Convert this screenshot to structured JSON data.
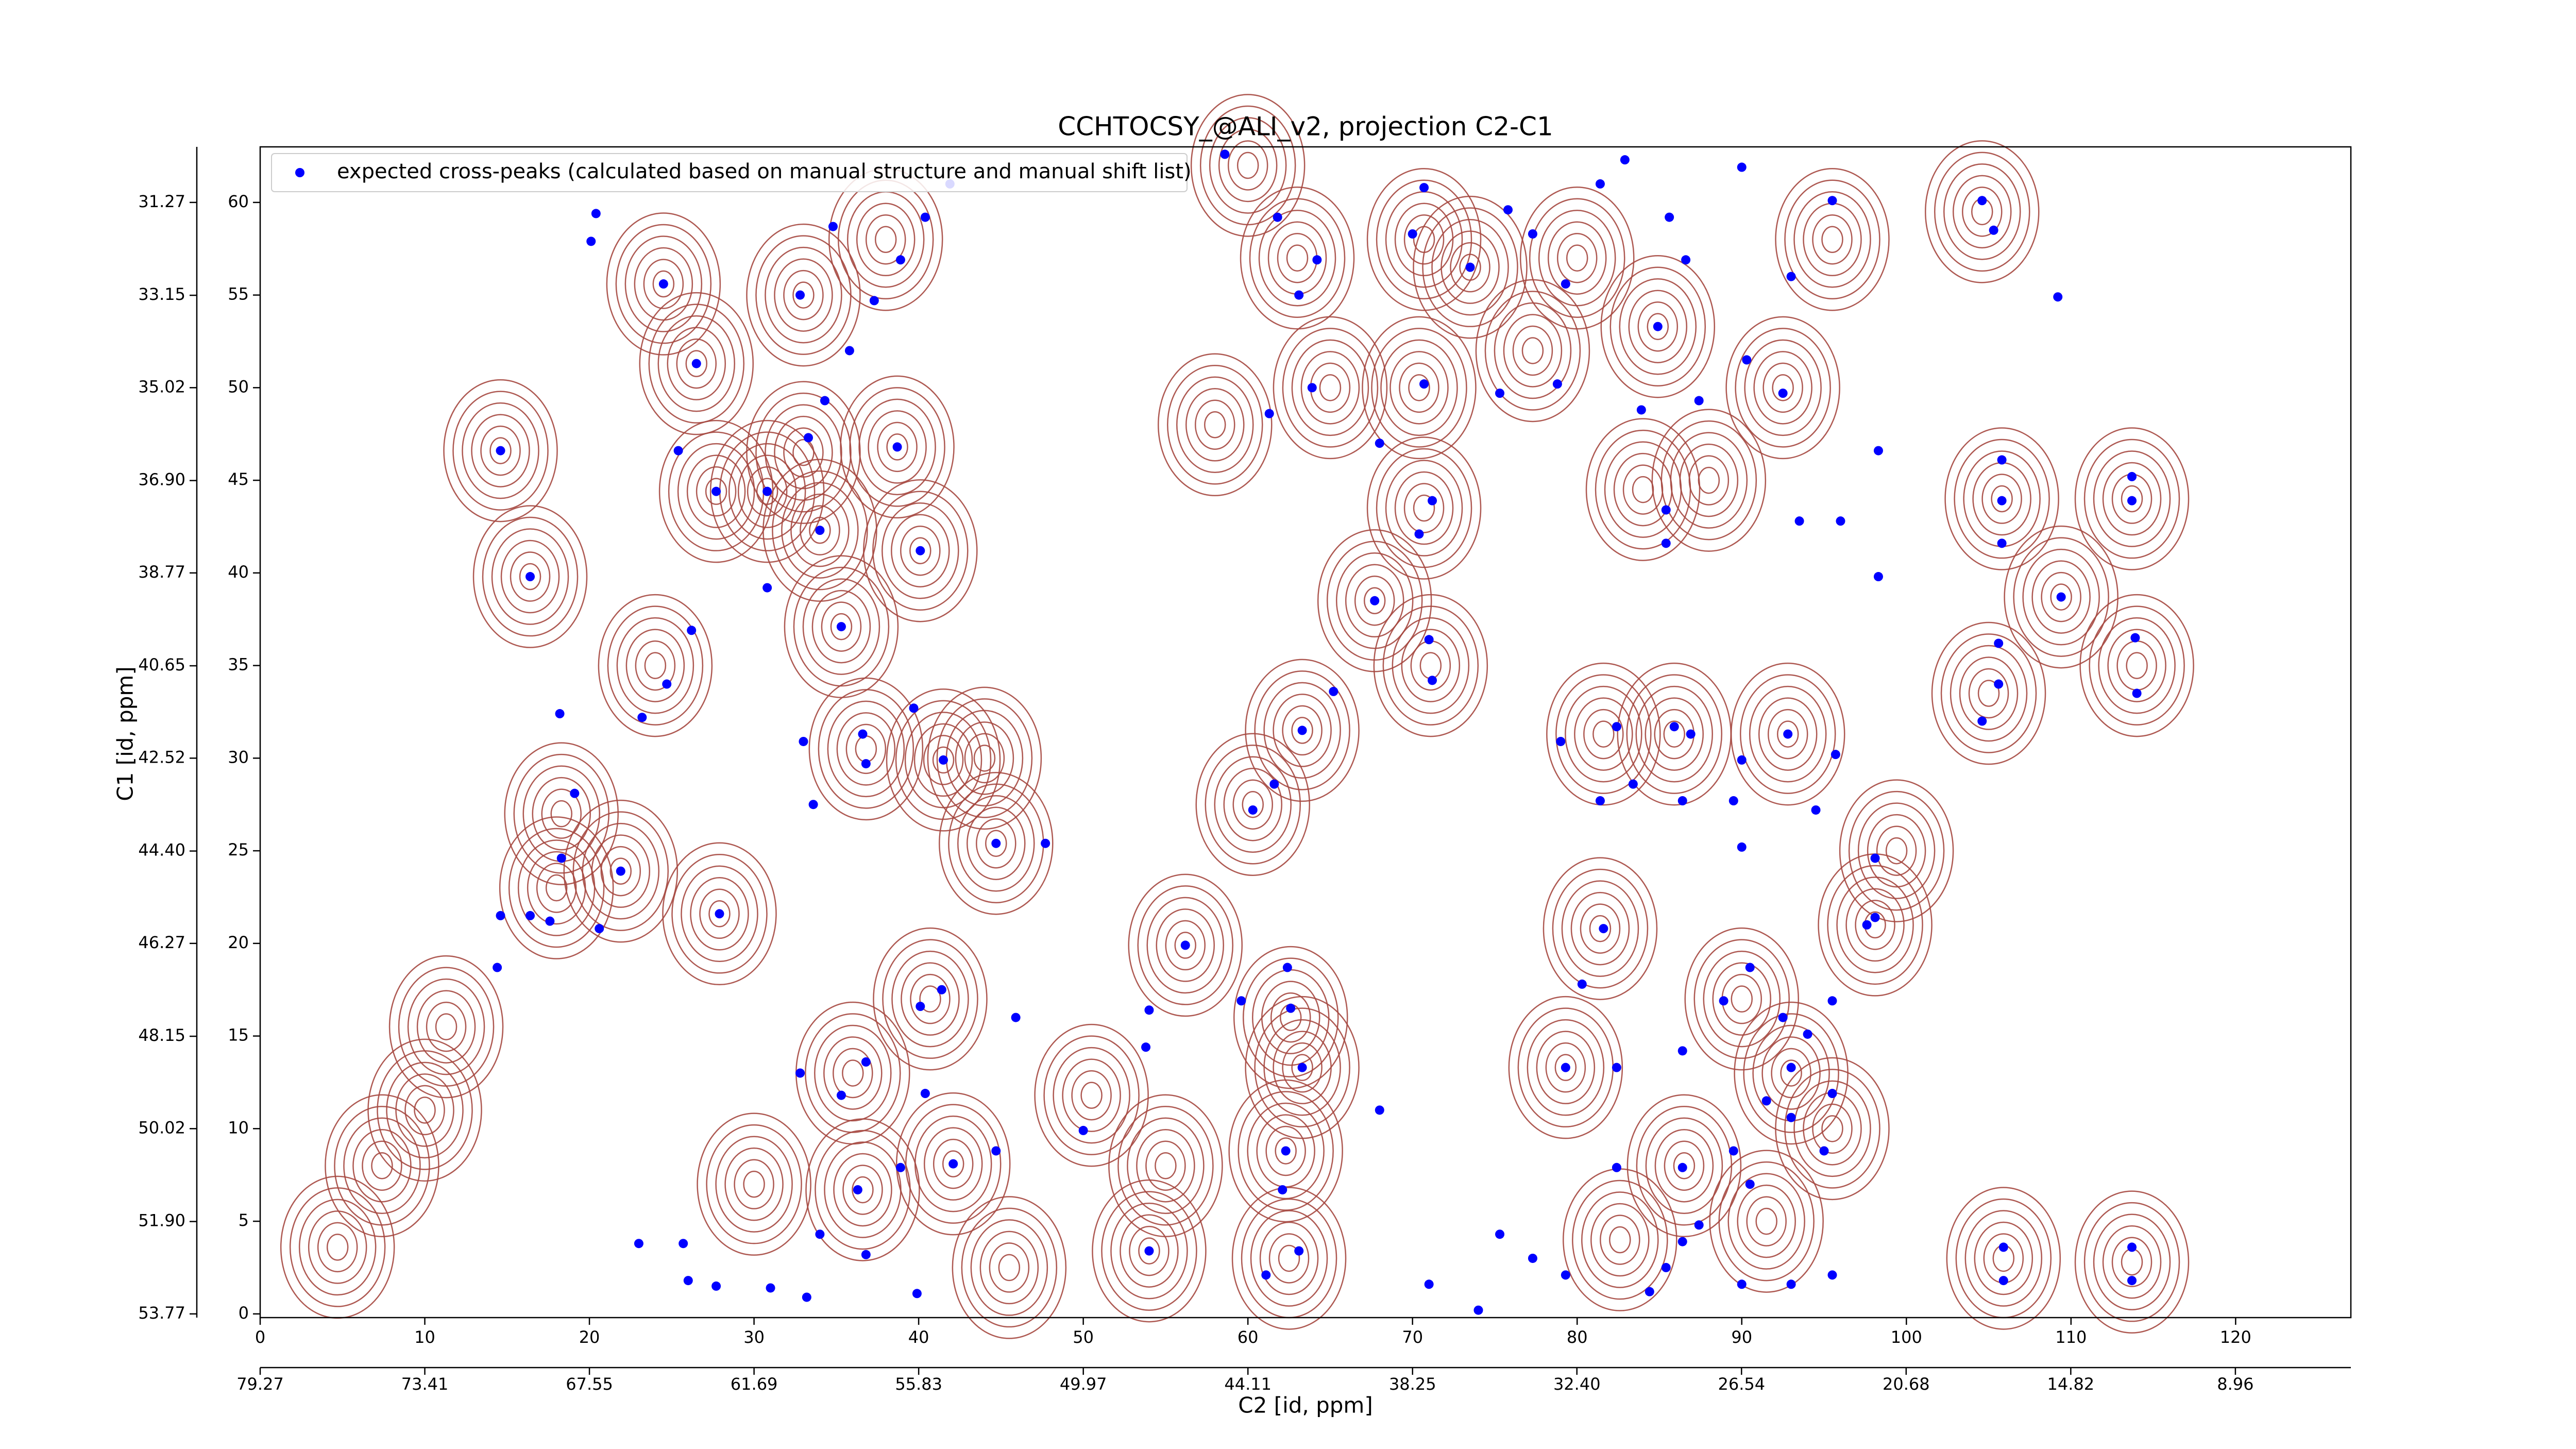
{
  "chart_data": {
    "type": "scatter",
    "title": "CCHTOCSY_@ALI_v2, projection C2-C1",
    "x_label": "C2 [id, ppm]",
    "y_label": "C1 [id, ppm]",
    "xlim": [
      0,
      127
    ],
    "xticks": [
      0,
      10,
      20,
      30,
      40,
      50,
      60,
      70,
      80,
      90,
      100,
      110,
      120
    ],
    "x2lim": [
      79.27,
      4.85
    ],
    "x2ticks": [
      79.27,
      73.41,
      67.55,
      61.69,
      55.83,
      49.97,
      44.11,
      38.25,
      {
        "value": 32.4,
        "label": "32.40"
      },
      26.54,
      20.68,
      14.82,
      8.96
    ],
    "ylim": [
      -0.2,
      63
    ],
    "yticks": [
      0,
      5,
      10,
      15,
      20,
      25,
      30,
      35,
      40,
      45,
      50,
      55,
      60
    ],
    "y2lim": [
      53.845,
      30.145
    ],
    "y2ticks": [
      31.27,
      33.15,
      35.02,
      {
        "value": 36.9,
        "label": "36.90"
      },
      38.77,
      40.65,
      42.52,
      {
        "value": 44.4,
        "label": "44.40"
      },
      46.27,
      48.15,
      50.02,
      {
        "value": 51.9,
        "label": "51.90"
      },
      53.77
    ],
    "legend": "upper left",
    "contours": {
      "color": "#a5473f",
      "x": [
        26.5,
        24.5,
        14.6,
        16.4,
        27.7,
        30.8,
        35.3,
        34.0,
        40.1,
        38.7,
        18.3,
        21.9,
        27.9,
        11.3,
        10,
        7.4,
        4.7,
        36.8,
        41.5,
        44.7,
        40.7,
        36,
        50.5,
        42.1,
        36.6,
        45.5,
        56.2,
        60.3,
        63.3,
        62.6,
        63.3,
        62.3,
        54,
        62.5,
        70.7,
        73.5,
        70.4,
        70.7,
        67.7,
        71.1,
        81.6,
        85.9,
        92.8,
        81.4,
        79.3,
        82.6,
        90,
        93,
        95.5,
        98.1,
        99.4,
        105.8,
        109.4,
        105,
        113.7,
        114,
        105.9,
        113.7,
        84.9,
        92.5,
        80,
        95.5,
        104.6,
        77.3,
        88,
        84,
        86.5,
        91.5,
        30,
        33,
        24,
        38,
        60,
        63,
        18,
        58,
        55,
        65,
        44,
        33
      ],
      "y": [
        51.3,
        55.6,
        46.6,
        39.8,
        44.4,
        44.4,
        37.1,
        42.3,
        41.2,
        46.8,
        27,
        23.9,
        21.6,
        15.5,
        11,
        8,
        3.6,
        30.5,
        29.9,
        25.4,
        17,
        13,
        11.8,
        8.1,
        6.7,
        2.5,
        19.9,
        27.5,
        31.5,
        16,
        13.3,
        8.8,
        3.4,
        3,
        58,
        56.5,
        50,
        43.5,
        38.5,
        35,
        31.3,
        31.3,
        31.3,
        20.8,
        13.3,
        4,
        17,
        13,
        10,
        21,
        25,
        44,
        38.7,
        33.5,
        44,
        35,
        3,
        2.8,
        53.3,
        50,
        57,
        58,
        59.5,
        52,
        45,
        44.5,
        8,
        5,
        7,
        46.5,
        35,
        58,
        62,
        57,
        23,
        48,
        8,
        50,
        30,
        55
      ]
    },
    "series": [
      {
        "name": "expected cross-peaks (calculated based on manual structure and manual shift list)",
        "color": "#0000ff",
        "x": [
          20.4,
          20.1,
          24.5,
          26.5,
          25.4,
          27.7,
          30.8,
          16.4,
          14.6,
          26.2,
          24.7,
          23.2,
          18.2,
          19.1,
          18.3,
          21.9,
          27.9,
          14.6,
          16.4,
          17.6,
          20.6,
          14.4,
          30.8,
          34.0,
          35.3,
          38.7,
          40.1,
          36.6,
          39.7,
          36.8,
          41.5,
          33.0,
          33.6,
          34.8,
          32.8,
          33.3,
          34.3,
          35.8,
          37.3,
          38.9,
          40.4,
          41.9,
          44.7,
          47.7,
          41.4,
          40.1,
          45.9,
          36.8,
          35.3,
          32.8,
          40.4,
          42.1,
          38.9,
          36.3,
          44.7,
          34.0,
          36.8,
          39.9,
          31.0,
          33.2,
          23.0,
          26.0,
          27.7,
          25.7,
          58.6,
          61.8,
          64.2,
          63.1,
          61.3,
          63.9,
          65.2,
          63.3,
          61.6,
          60.3,
          56.2,
          62.4,
          62.6,
          63.3,
          54.0,
          53.8,
          59.6,
          68.0,
          62.3,
          62.1,
          63.1,
          61.1,
          54.0,
          50.0,
          70.7,
          70.0,
          73.5,
          75.8,
          77.3,
          79.3,
          81.4,
          82.9,
          85.6,
          86.6,
          90.0,
          93.0,
          95.5,
          92.5,
          90.3,
          84.9,
          87.4,
          83.9,
          78.8,
          75.3,
          70.7,
          68.0,
          71.2,
          70.4,
          85.4,
          85.4,
          93.5,
          96.0,
          98.3,
          98.3,
          67.7,
          71.0,
          71.2,
          79.0,
          82.4,
          85.9,
          86.9,
          90.0,
          92.8,
          95.7,
          83.4,
          81.4,
          86.4,
          89.5,
          94.5,
          90.0,
          98.1,
          98.1,
          97.6,
          81.6,
          80.3,
          79.3,
          82.4,
          86.4,
          88.9,
          90.5,
          92.5,
          95.5,
          94.0,
          93.0,
          91.5,
          95.5,
          89.5,
          86.4,
          90.5,
          93.0,
          95.0,
          82.4,
          84.4,
          85.4,
          86.4,
          87.4,
          90.0,
          93.0,
          95.5,
          79.3,
          77.3,
          75.3,
          74.0,
          71.0,
          104.6,
          105.3,
          109.2,
          105.8,
          105.8,
          105.8,
          109.4,
          105.6,
          105.6,
          104.6,
          113.7,
          113.7,
          113.9,
          114.0,
          105.9,
          105.9,
          113.7,
          113.7
        ],
        "values": [
          59.4,
          57.9,
          55.6,
          51.3,
          46.6,
          44.4,
          44.4,
          39.8,
          46.6,
          36.9,
          34.0,
          32.2,
          32.4,
          28.1,
          24.6,
          23.9,
          21.6,
          21.5,
          21.5,
          21.2,
          20.8,
          18.7,
          39.2,
          42.3,
          37.1,
          46.8,
          41.2,
          31.3,
          32.7,
          29.7,
          29.9,
          30.9,
          27.5,
          58.7,
          55.0,
          47.3,
          49.3,
          52.0,
          54.7,
          56.9,
          59.2,
          61.0,
          25.4,
          25.4,
          17.5,
          16.6,
          16.0,
          13.6,
          11.8,
          13.0,
          11.9,
          8.1,
          7.9,
          6.7,
          8.8,
          4.3,
          3.2,
          1.1,
          1.4,
          0.9,
          3.8,
          1.8,
          1.5,
          3.8,
          62.6,
          59.2,
          56.9,
          55.0,
          48.6,
          50.0,
          33.6,
          31.5,
          28.6,
          27.2,
          19.9,
          18.7,
          16.5,
          13.3,
          16.4,
          14.4,
          16.9,
          11.0,
          8.8,
          6.7,
          3.4,
          2.1,
          3.4,
          9.9,
          60.8,
          58.3,
          56.5,
          59.6,
          58.3,
          55.6,
          61.0,
          62.3,
          59.2,
          56.9,
          61.9,
          56.0,
          60.1,
          49.7,
          51.5,
          53.3,
          49.3,
          48.8,
          50.2,
          49.7,
          50.2,
          47.0,
          43.9,
          42.1,
          43.4,
          41.6,
          42.8,
          42.8,
          46.6,
          39.8,
          38.5,
          36.4,
          34.2,
          30.9,
          31.7,
          31.7,
          31.3,
          29.9,
          31.3,
          30.2,
          28.6,
          27.7,
          27.7,
          27.7,
          27.2,
          25.2,
          24.6,
          21.4,
          21.0,
          20.8,
          17.8,
          13.3,
          13.3,
          14.2,
          16.9,
          18.7,
          16.0,
          16.9,
          15.1,
          13.3,
          11.5,
          11.9,
          8.8,
          7.9,
          7.0,
          10.6,
          8.8,
          7.9,
          1.2,
          2.5,
          3.9,
          4.8,
          1.6,
          1.6,
          2.1,
          2.1,
          3.0,
          4.3,
          0.2,
          1.6,
          60.1,
          58.5,
          54.9,
          46.1,
          43.9,
          41.6,
          38.7,
          36.2,
          34.0,
          32.0,
          43.9,
          45.2,
          36.5,
          33.5,
          3.6,
          1.8,
          3.6,
          1.8
        ]
      }
    ]
  }
}
